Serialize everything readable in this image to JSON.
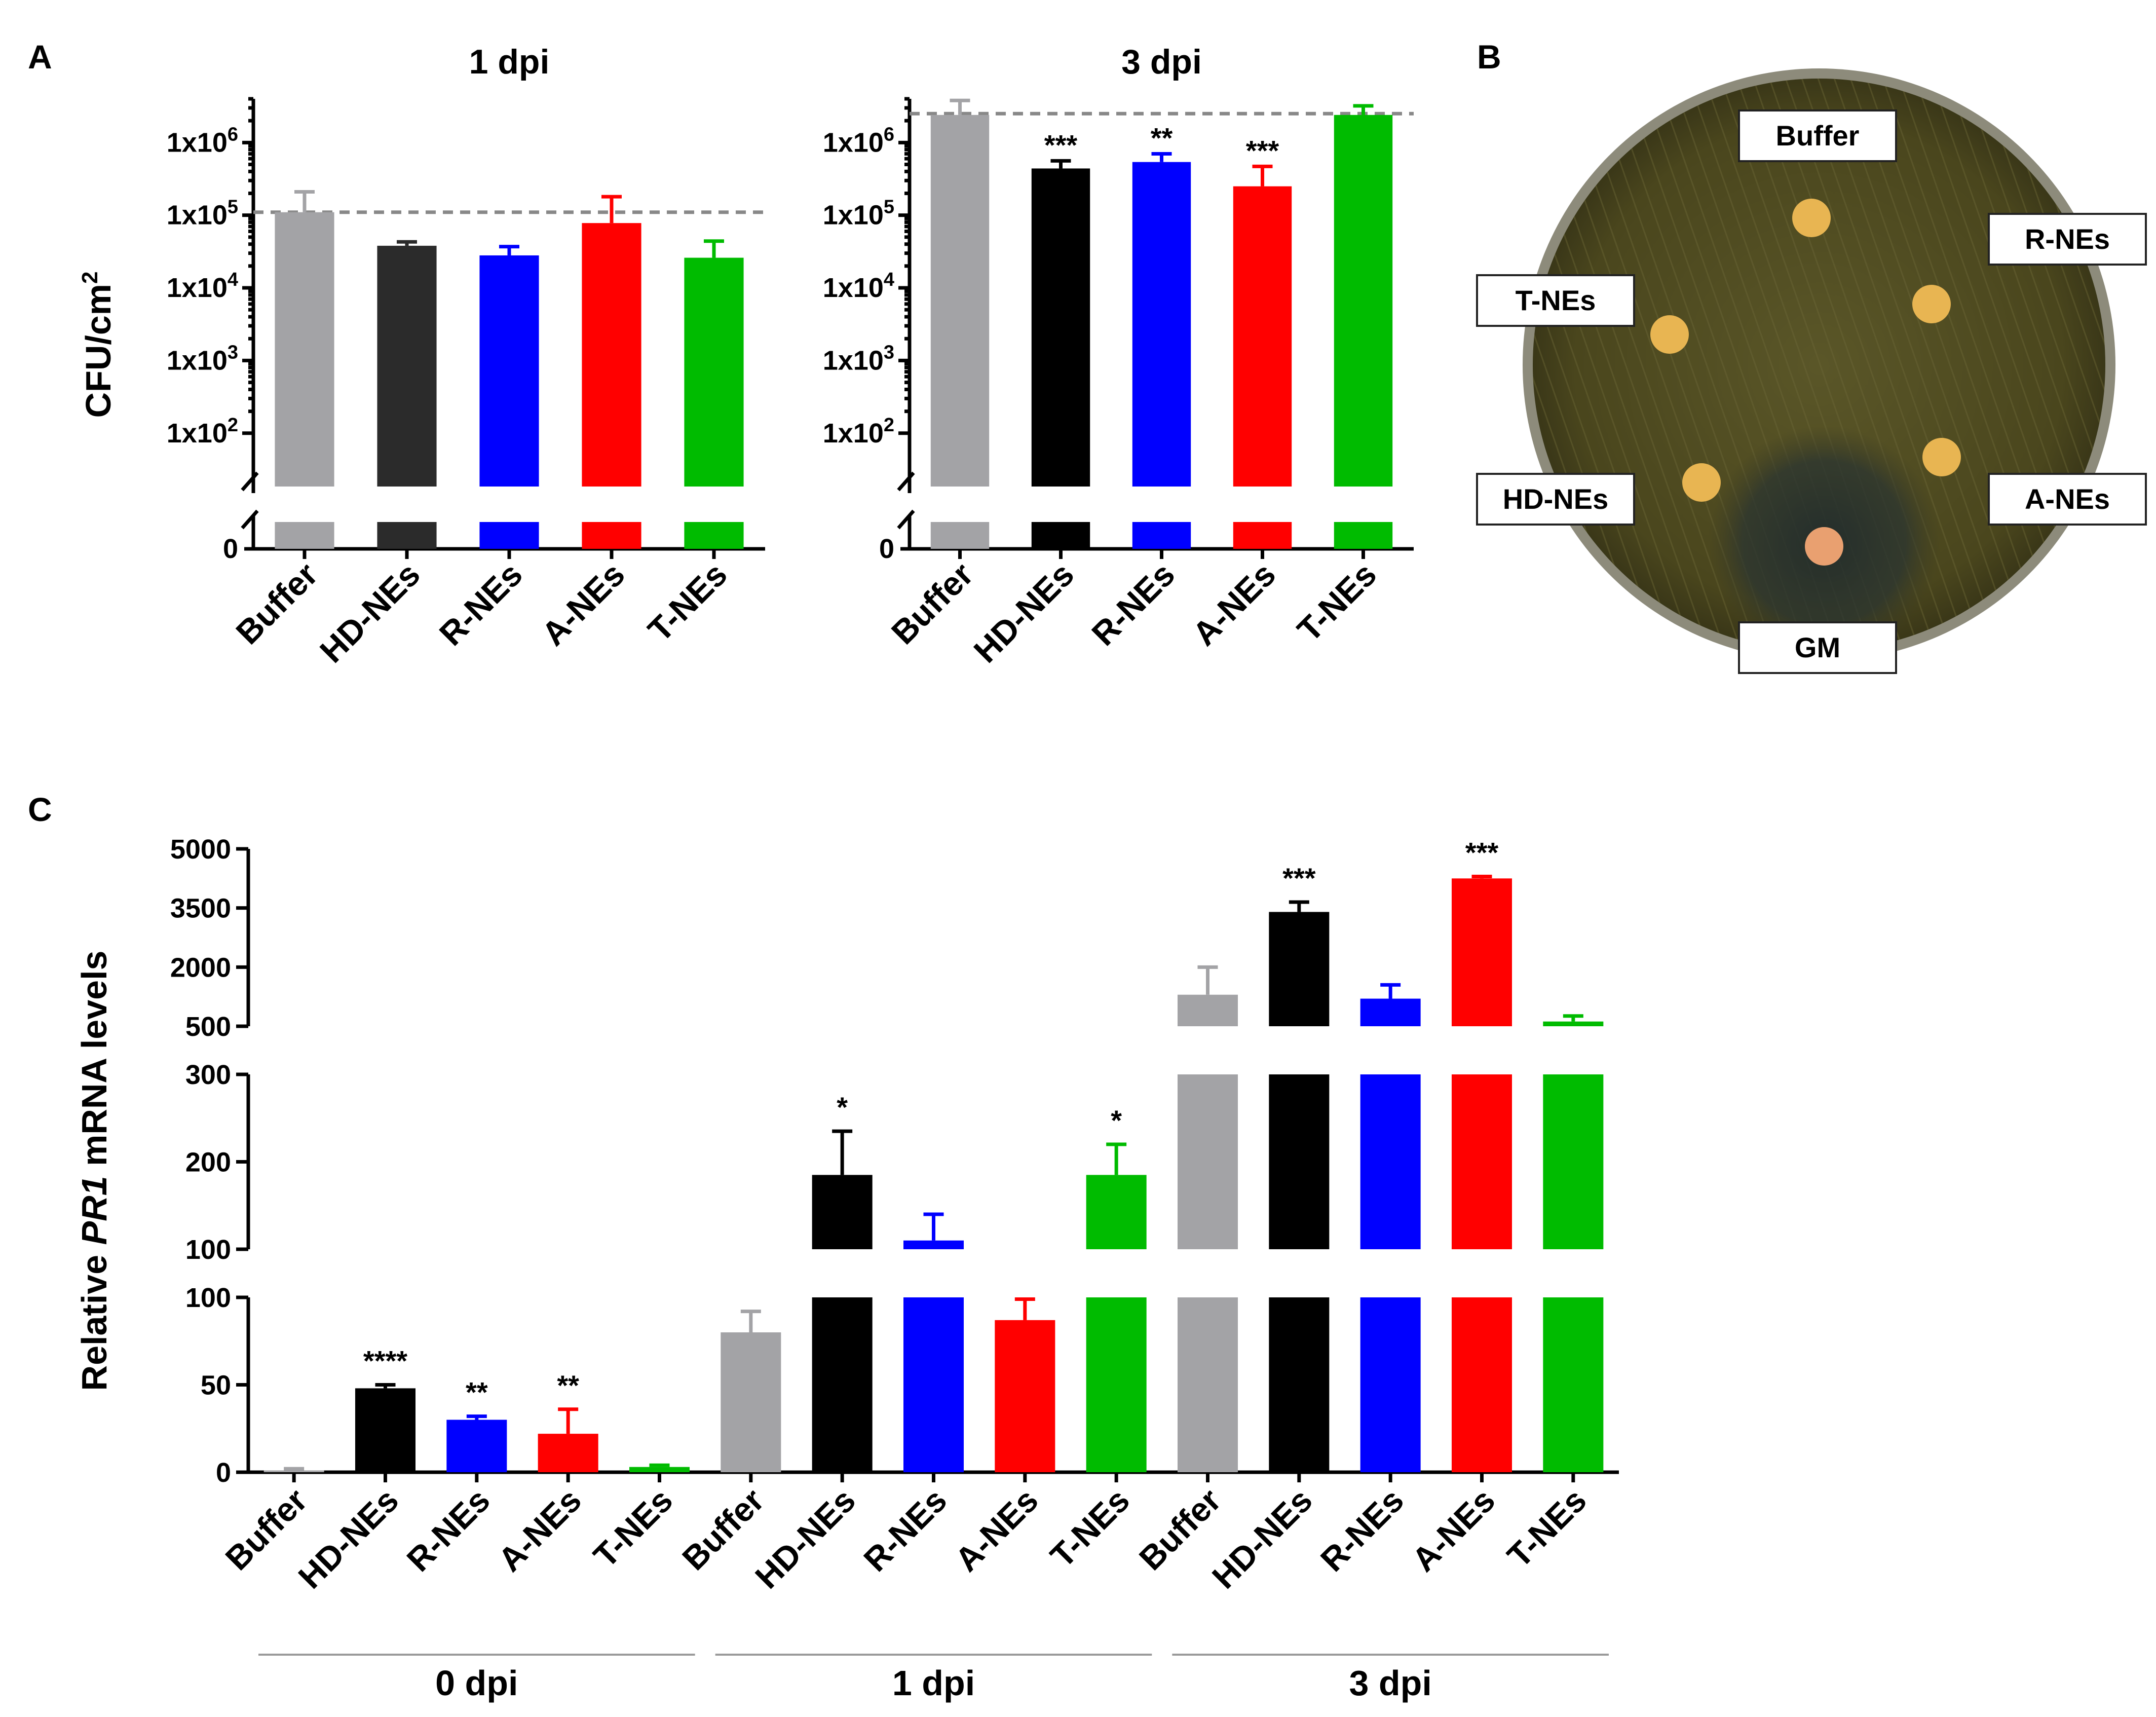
{
  "figure_letters": {
    "a": "A",
    "b": "B",
    "c": "C"
  },
  "colors": {
    "buffer": "#a3a3a6",
    "hd_dark": "#2b2b2b",
    "hd": "#000000",
    "r": "#0000ff",
    "a": "#ff0000",
    "t": "#00bb00",
    "refline": "#888888",
    "plate_agar": "#4e4a1f",
    "plate_rim": "#8d8b7b",
    "disc": "#e8b552",
    "gm_disc": "#e9a070"
  },
  "chart_data": [
    {
      "type": "bar",
      "title": "1 dpi",
      "ylabel": "CFU/cm",
      "ylabel_sup": "2",
      "scale": "log",
      "categories": [
        "Buffer",
        "HD-NEs",
        "R-NEs",
        "A-NEs",
        "T-NEs"
      ],
      "values": [
        110000,
        38000,
        28000,
        78000,
        26000
      ],
      "errors": [
        210000,
        43000,
        37000,
        180000,
        44000
      ],
      "significance": [
        "",
        "",
        "",
        "",
        ""
      ],
      "reference_line": 110000,
      "yticks": [
        {
          "base": "1x10",
          "exp": "2",
          "value": 100
        },
        {
          "base": "1x10",
          "exp": "3",
          "value": 1000
        },
        {
          "base": "1x10",
          "exp": "4",
          "value": 10000
        },
        {
          "base": "1x10",
          "exp": "5",
          "value": 100000
        },
        {
          "base": "1x10",
          "exp": "6",
          "value": 1000000
        }
      ],
      "zero_label": "0",
      "ylim": [
        20,
        4000000
      ]
    },
    {
      "type": "bar",
      "title": "3 dpi",
      "scale": "log",
      "categories": [
        "Buffer",
        "HD-NEs",
        "R-NEs",
        "A-NEs",
        "T-NEs"
      ],
      "values": [
        2400000,
        440000,
        540000,
        250000,
        2400000
      ],
      "errors": [
        3800000,
        560000,
        700000,
        470000,
        3200000
      ],
      "significance": [
        "",
        "***",
        "**",
        "***",
        ""
      ],
      "reference_line": 2500000,
      "yticks": [
        {
          "base": "1x10",
          "exp": "2",
          "value": 100
        },
        {
          "base": "1x10",
          "exp": "3",
          "value": 1000
        },
        {
          "base": "1x10",
          "exp": "4",
          "value": 10000
        },
        {
          "base": "1x10",
          "exp": "5",
          "value": 100000
        },
        {
          "base": "1x10",
          "exp": "6",
          "value": 1000000
        }
      ],
      "zero_label": "0",
      "ylim": [
        20,
        4000000
      ]
    },
    {
      "type": "bar",
      "ylabel_parts": [
        "Relative ",
        "PR1",
        " mRNA levels"
      ],
      "categories": [
        "Buffer",
        "HD-NEs",
        "R-NEs",
        "A-NEs",
        "T-NEs",
        "Buffer",
        "HD-NEs",
        "R-NEs",
        "A-NEs",
        "T-NEs",
        "Buffer",
        "HD-NEs",
        "R-NEs",
        "A-NEs",
        "T-NEs"
      ],
      "groups": [
        {
          "label": "0 dpi",
          "start": 0,
          "end": 4
        },
        {
          "label": "1 dpi",
          "start": 5,
          "end": 9
        },
        {
          "label": "3 dpi",
          "start": 10,
          "end": 14
        }
      ],
      "values": [
        1,
        48,
        30,
        22,
        3,
        80,
        185,
        110,
        87,
        185,
        1300,
        3400,
        1200,
        4250,
        620
      ],
      "errors": [
        2,
        50,
        32,
        36,
        4,
        92,
        235,
        140,
        99,
        220,
        2000,
        3650,
        1550,
        4300,
        760
      ],
      "significance": [
        "",
        "****",
        "**",
        "**",
        "",
        "",
        "*",
        "",
        "",
        "*",
        "",
        "***",
        "",
        "***",
        ""
      ],
      "broken_axis_segments": [
        {
          "range": [
            0,
            100
          ],
          "ticks": [
            0,
            50,
            100
          ]
        },
        {
          "range": [
            100,
            300
          ],
          "ticks": [
            100,
            200,
            300
          ]
        },
        {
          "range": [
            500,
            5000
          ],
          "ticks": [
            500,
            2000,
            3500,
            5000
          ]
        }
      ]
    }
  ],
  "plate": {
    "labels": {
      "top": "Buffer",
      "right_upper": "R-NEs",
      "left_upper": "T-NEs",
      "left_lower": "HD-NEs",
      "right_lower": "A-NEs",
      "bottom": "GM"
    }
  }
}
